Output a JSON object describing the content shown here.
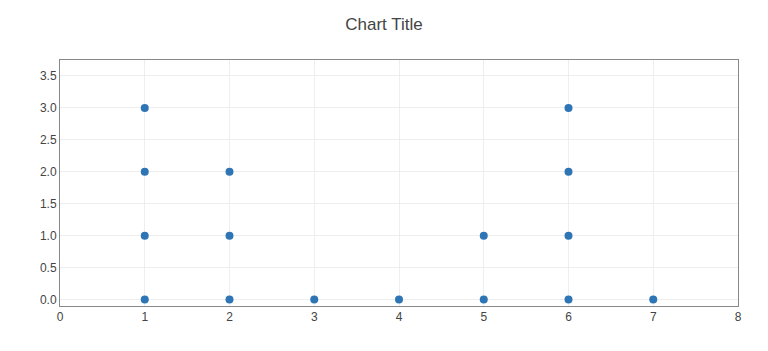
{
  "chart_data": {
    "type": "scatter",
    "title": "Chart Title",
    "x": [
      1,
      1,
      1,
      1,
      2,
      2,
      2,
      3,
      4,
      5,
      5,
      6,
      6,
      6,
      6,
      7
    ],
    "values": [
      0,
      1,
      2,
      3,
      0,
      1,
      2,
      0,
      0,
      0,
      1,
      0,
      1,
      2,
      3,
      0
    ],
    "color": "#2E75B6",
    "xlim": [
      0,
      8
    ],
    "ylim": [
      -0.1,
      3.75
    ],
    "xticks": [
      0,
      1,
      2,
      3,
      4,
      5,
      6,
      7,
      8
    ],
    "yticks": [
      {
        "value": 0,
        "label": "0.0"
      },
      {
        "value": 0.5,
        "label": "0.5"
      },
      {
        "value": 1,
        "label": "1.0"
      },
      {
        "value": 1.5,
        "label": "1.5"
      },
      {
        "value": 2,
        "label": "2.0"
      },
      {
        "value": 2.5,
        "label": "2.5"
      },
      {
        "value": 3,
        "label": "3.0"
      },
      {
        "value": 3.5,
        "label": "3.5"
      }
    ],
    "grid": true
  }
}
